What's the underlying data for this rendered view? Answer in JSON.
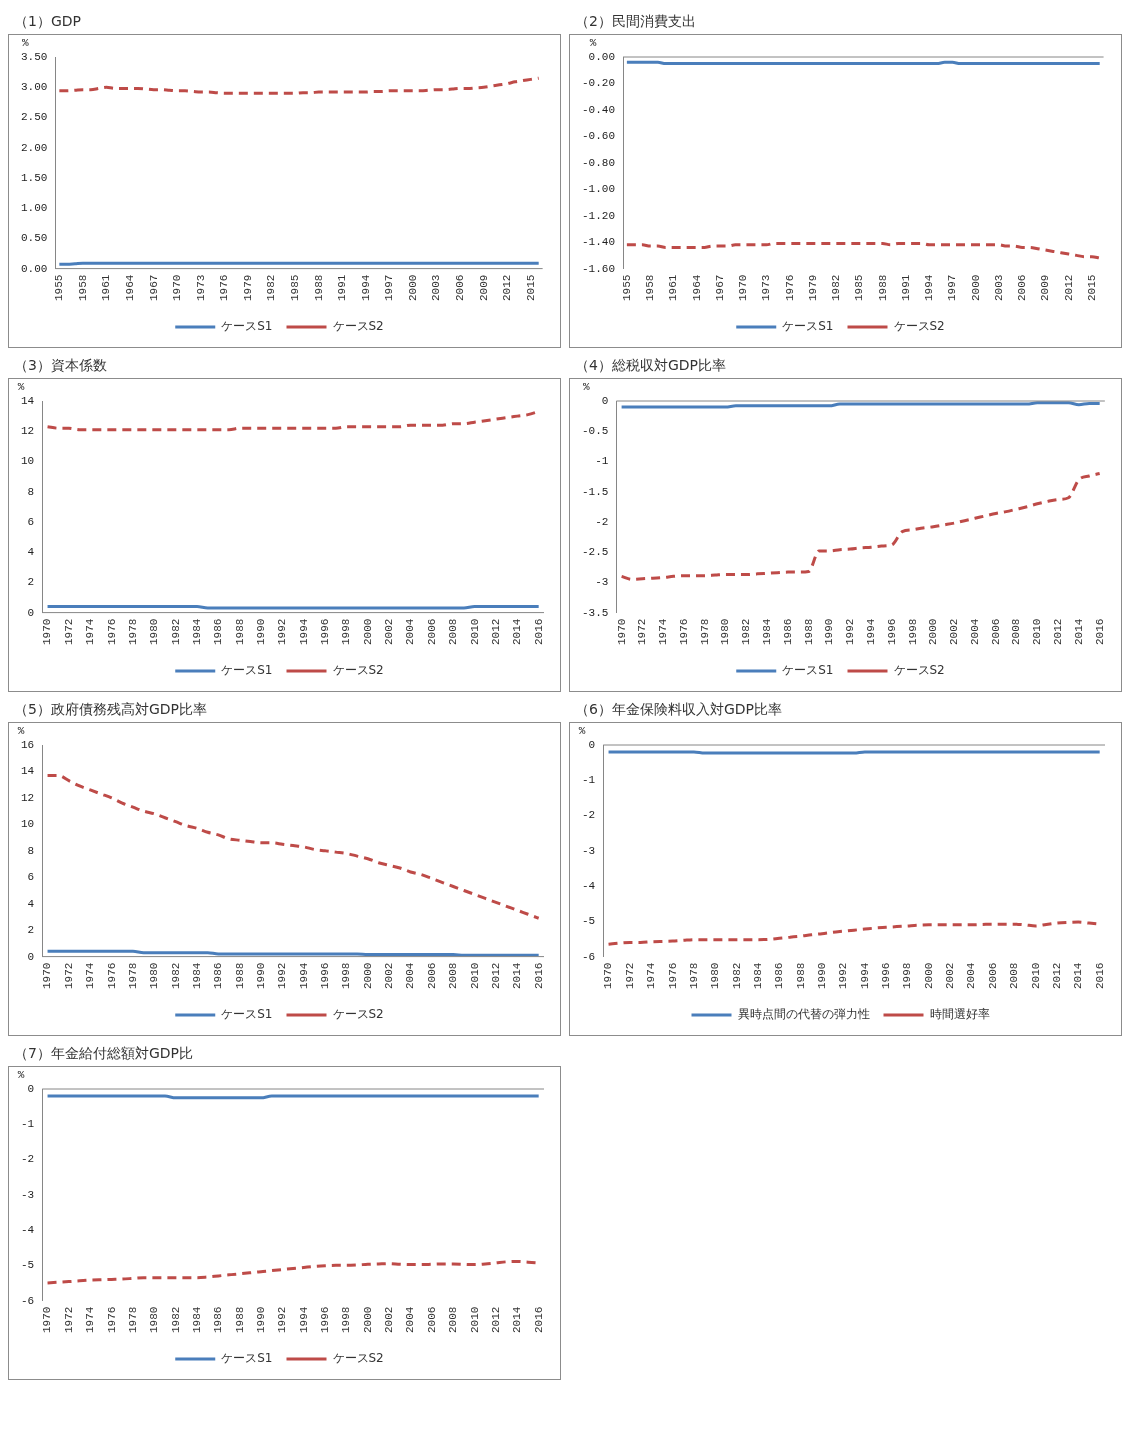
{
  "chart_data": [
    {
      "type": "line",
      "title": "（1）GDP",
      "ylabel": "%",
      "legend": "bottom",
      "categories": [
        "1955",
        null,
        null,
        "1958",
        null,
        null,
        "1961",
        null,
        null,
        "1964",
        null,
        null,
        "1967",
        null,
        null,
        "1970",
        null,
        null,
        "1973",
        null,
        null,
        "1976",
        null,
        null,
        "1979",
        null,
        null,
        "1982",
        null,
        null,
        "1985",
        null,
        null,
        "1988",
        null,
        null,
        "1991",
        null,
        null,
        "1994",
        null,
        null,
        "1997",
        null,
        null,
        "2000",
        null,
        null,
        "2003",
        null,
        null,
        "2006",
        null,
        null,
        "2009",
        null,
        null,
        "2012",
        null,
        null,
        "2015",
        null
      ],
      "series": [
        {
          "name": "ケースS1",
          "color": "#4a7ebb",
          "line_style": "solid",
          "values": [
            0.07,
            0.07,
            0.08,
            0.09,
            0.09,
            0.09,
            0.09,
            0.09,
            0.09,
            0.09,
            0.09,
            0.09,
            0.09,
            0.09,
            0.09,
            0.09,
            0.09,
            0.09,
            0.09,
            0.09,
            0.09,
            0.09,
            0.09,
            0.09,
            0.09,
            0.09,
            0.09,
            0.09,
            0.09,
            0.09,
            0.09,
            0.09,
            0.09,
            0.09,
            0.09,
            0.09,
            0.09,
            0.09,
            0.09,
            0.09,
            0.09,
            0.09,
            0.09,
            0.09,
            0.09,
            0.09,
            0.09,
            0.09,
            0.09,
            0.09,
            0.09,
            0.09,
            0.09,
            0.09,
            0.09,
            0.09,
            0.09,
            0.09,
            0.09,
            0.09,
            0.09,
            0.09
          ]
        },
        {
          "name": "ケースS2",
          "color": "#be4b48",
          "line_style": "dashed",
          "values": [
            2.94,
            2.94,
            2.95,
            2.96,
            2.96,
            2.98,
            3,
            2.98,
            2.98,
            2.98,
            2.98,
            2.97,
            2.96,
            2.96,
            2.95,
            2.94,
            2.94,
            2.93,
            2.92,
            2.92,
            2.91,
            2.9,
            2.9,
            2.9,
            2.9,
            2.9,
            2.9,
            2.9,
            2.9,
            2.9,
            2.9,
            2.91,
            2.91,
            2.92,
            2.92,
            2.92,
            2.92,
            2.92,
            2.92,
            2.92,
            2.93,
            2.93,
            2.94,
            2.94,
            2.94,
            2.94,
            2.94,
            2.95,
            2.96,
            2.96,
            2.97,
            2.98,
            2.98,
            2.99,
            3,
            3.02,
            3.04,
            3.06,
            3.09,
            3.11,
            3.13,
            3.15
          ]
        }
      ],
      "ylim": [
        0,
        3.5
      ],
      "yticks": [
        {
          "value": 0,
          "label": "0.00"
        },
        {
          "value": 0.5,
          "label": "0.50"
        },
        {
          "value": 1,
          "label": "1.00"
        },
        {
          "value": 1.5,
          "label": "1.50"
        },
        {
          "value": 2,
          "label": "2.00"
        },
        {
          "value": 2.5,
          "label": "2.50"
        },
        {
          "value": 3,
          "label": "3.00"
        },
        {
          "value": 3.5,
          "label": "3.50"
        }
      ]
    },
    {
      "type": "line",
      "title": "（2）民間消費支出",
      "ylabel": "%",
      "legend": "bottom",
      "categories": [
        "1955",
        null,
        null,
        "1958",
        null,
        null,
        "1961",
        null,
        null,
        "1964",
        null,
        null,
        "1967",
        null,
        null,
        "1970",
        null,
        null,
        "1973",
        null,
        null,
        "1976",
        null,
        null,
        "1979",
        null,
        null,
        "1982",
        null,
        null,
        "1985",
        null,
        null,
        "1988",
        null,
        null,
        "1991",
        null,
        null,
        "1994",
        null,
        null,
        "1997",
        null,
        null,
        "2000",
        null,
        null,
        "2003",
        null,
        null,
        "2006",
        null,
        null,
        "2009",
        null,
        null,
        "2012",
        null,
        null,
        "2015",
        null
      ],
      "series": [
        {
          "name": "ケースS1",
          "color": "#4a7ebb",
          "line_style": "solid",
          "values": [
            -0.04,
            -0.04,
            -0.04,
            -0.04,
            -0.04,
            -0.05,
            -0.05,
            -0.05,
            -0.05,
            -0.05,
            -0.05,
            -0.05,
            -0.05,
            -0.05,
            -0.05,
            -0.05,
            -0.05,
            -0.05,
            -0.05,
            -0.05,
            -0.05,
            -0.05,
            -0.05,
            -0.05,
            -0.05,
            -0.05,
            -0.05,
            -0.05,
            -0.05,
            -0.05,
            -0.05,
            -0.05,
            -0.05,
            -0.05,
            -0.05,
            -0.05,
            -0.05,
            -0.05,
            -0.05,
            -0.05,
            -0.05,
            -0.04,
            -0.04,
            -0.05,
            -0.05,
            -0.05,
            -0.05,
            -0.05,
            -0.05,
            -0.05,
            -0.05,
            -0.05,
            -0.05,
            -0.05,
            -0.05,
            -0.05,
            -0.05,
            -0.05,
            -0.05,
            -0.05,
            -0.05,
            -0.05
          ]
        },
        {
          "name": "ケースS2",
          "color": "#be4b48",
          "line_style": "dashed",
          "values": [
            -1.42,
            -1.42,
            -1.42,
            -1.43,
            -1.43,
            -1.44,
            -1.44,
            -1.44,
            -1.44,
            -1.44,
            -1.44,
            -1.43,
            -1.43,
            -1.43,
            -1.42,
            -1.42,
            -1.42,
            -1.42,
            -1.42,
            -1.41,
            -1.41,
            -1.41,
            -1.41,
            -1.41,
            -1.41,
            -1.41,
            -1.41,
            -1.41,
            -1.41,
            -1.41,
            -1.41,
            -1.41,
            -1.41,
            -1.41,
            -1.42,
            -1.41,
            -1.41,
            -1.41,
            -1.41,
            -1.42,
            -1.42,
            -1.42,
            -1.42,
            -1.42,
            -1.42,
            -1.42,
            -1.42,
            -1.42,
            -1.42,
            -1.43,
            -1.43,
            -1.44,
            -1.44,
            -1.45,
            -1.46,
            -1.47,
            -1.48,
            -1.49,
            -1.5,
            -1.51,
            -1.51,
            -1.52
          ]
        }
      ],
      "ylim": [
        -1.6,
        0
      ],
      "yticks": [
        {
          "value": 0,
          "label": "0.00"
        },
        {
          "value": -0.2,
          "label": "-0.20"
        },
        {
          "value": -0.4,
          "label": "-0.40"
        },
        {
          "value": -0.6,
          "label": "-0.60"
        },
        {
          "value": -0.8,
          "label": "-0.80"
        },
        {
          "value": -1,
          "label": "-1.00"
        },
        {
          "value": -1.2,
          "label": "-1.20"
        },
        {
          "value": -1.4,
          "label": "-1.40"
        },
        {
          "value": -1.6,
          "label": "-1.60"
        }
      ]
    },
    {
      "type": "line",
      "title": "（3）資本係数",
      "ylabel": "%",
      "legend": "bottom",
      "categories": [
        "1970",
        null,
        "1972",
        null,
        "1974",
        null,
        "1976",
        null,
        "1978",
        null,
        "1980",
        null,
        "1982",
        null,
        "1984",
        null,
        "1986",
        null,
        "1988",
        null,
        "1990",
        null,
        "1992",
        null,
        "1994",
        null,
        "1996",
        null,
        "1998",
        null,
        "2000",
        null,
        "2002",
        null,
        "2004",
        null,
        "2006",
        null,
        "2008",
        null,
        "2010",
        null,
        "2012",
        null,
        "2014",
        null,
        "2016"
      ],
      "series": [
        {
          "name": "ケースS1",
          "color": "#4a7ebb",
          "line_style": "solid",
          "values": [
            0.4,
            0.4,
            0.4,
            0.4,
            0.4,
            0.4,
            0.4,
            0.4,
            0.4,
            0.4,
            0.4,
            0.4,
            0.4,
            0.4,
            0.4,
            0.3,
            0.3,
            0.3,
            0.3,
            0.3,
            0.3,
            0.3,
            0.3,
            0.3,
            0.3,
            0.3,
            0.3,
            0.3,
            0.3,
            0.3,
            0.3,
            0.3,
            0.3,
            0.3,
            0.3,
            0.3,
            0.3,
            0.3,
            0.3,
            0.3,
            0.4,
            0.4,
            0.4,
            0.4,
            0.4,
            0.4,
            0.4
          ]
        },
        {
          "name": "ケースS2",
          "color": "#be4b48",
          "line_style": "dashed",
          "values": [
            12.3,
            12.2,
            12.2,
            12.1,
            12.1,
            12.1,
            12.1,
            12.1,
            12.1,
            12.1,
            12.1,
            12.1,
            12.1,
            12.1,
            12.1,
            12.1,
            12.1,
            12.1,
            12.2,
            12.2,
            12.2,
            12.2,
            12.2,
            12.2,
            12.2,
            12.2,
            12.2,
            12.2,
            12.3,
            12.3,
            12.3,
            12.3,
            12.3,
            12.3,
            12.4,
            12.4,
            12.4,
            12.4,
            12.5,
            12.5,
            12.6,
            12.7,
            12.8,
            12.9,
            13,
            13.1,
            13.3
          ]
        }
      ],
      "ylim": [
        0,
        14
      ],
      "yticks": [
        0,
        2,
        4,
        6,
        8,
        10,
        12,
        14
      ]
    },
    {
      "type": "line",
      "title": "（4）総税収対GDP比率",
      "ylabel": "%",
      "legend": "bottom",
      "categories": [
        "1970",
        null,
        "1972",
        null,
        "1974",
        null,
        "1976",
        null,
        "1978",
        null,
        "1980",
        null,
        "1982",
        null,
        "1984",
        null,
        "1986",
        null,
        "1988",
        null,
        "1990",
        null,
        "1992",
        null,
        "1994",
        null,
        "1996",
        null,
        "1998",
        null,
        "2000",
        null,
        "2002",
        null,
        "2004",
        null,
        "2006",
        null,
        "2008",
        null,
        "2010",
        null,
        "2012",
        null,
        "2014",
        null,
        "2016"
      ],
      "series": [
        {
          "name": "ケースS1",
          "color": "#4a7ebb",
          "line_style": "solid",
          "values": [
            -0.1,
            -0.1,
            -0.1,
            -0.1,
            -0.1,
            -0.1,
            -0.1,
            -0.1,
            -0.1,
            -0.1,
            -0.1,
            -0.08,
            -0.08,
            -0.08,
            -0.08,
            -0.08,
            -0.08,
            -0.08,
            -0.08,
            -0.08,
            -0.08,
            -0.05,
            -0.05,
            -0.05,
            -0.05,
            -0.05,
            -0.05,
            -0.05,
            -0.05,
            -0.05,
            -0.05,
            -0.05,
            -0.05,
            -0.05,
            -0.05,
            -0.05,
            -0.05,
            -0.05,
            -0.05,
            -0.05,
            -0.03,
            -0.03,
            -0.03,
            -0.03,
            -0.06,
            -0.04,
            -0.04
          ]
        },
        {
          "name": "ケースS2",
          "color": "#be4b48",
          "line_style": "dashed",
          "values": [
            -2.9,
            -2.95,
            -2.94,
            -2.93,
            -2.92,
            -2.9,
            -2.89,
            -2.89,
            -2.89,
            -2.88,
            -2.87,
            -2.87,
            -2.87,
            -2.86,
            -2.85,
            -2.84,
            -2.83,
            -2.83,
            -2.82,
            -2.48,
            -2.48,
            -2.46,
            -2.45,
            -2.43,
            -2.42,
            -2.4,
            -2.38,
            -2.16,
            -2.13,
            -2.1,
            -2.08,
            -2.05,
            -2.02,
            -1.98,
            -1.94,
            -1.9,
            -1.86,
            -1.83,
            -1.79,
            -1.75,
            -1.7,
            -1.66,
            -1.63,
            -1.6,
            -1.3,
            -1.24,
            -1.2
          ]
        }
      ],
      "ylim": [
        -3.5,
        0
      ],
      "yticks": [
        0,
        -0.5,
        -1,
        -1.5,
        -2,
        -2.5,
        -3,
        -3.5
      ]
    },
    {
      "type": "line",
      "title": "（5）政府債務残高対GDP比率",
      "ylabel": "%",
      "legend": "bottom",
      "categories": [
        "1970",
        null,
        "1972",
        null,
        "1974",
        null,
        "1976",
        null,
        "1978",
        null,
        "1980",
        null,
        "1982",
        null,
        "1984",
        null,
        "1986",
        null,
        "1988",
        null,
        "1990",
        null,
        "1992",
        null,
        "1994",
        null,
        "1996",
        null,
        "1998",
        null,
        "2000",
        null,
        "2002",
        null,
        "2004",
        null,
        "2006",
        null,
        "2008",
        null,
        "2010",
        null,
        "2012",
        null,
        "2014",
        null,
        "2016"
      ],
      "series": [
        {
          "name": "ケースS1",
          "color": "#4a7ebb",
          "line_style": "solid",
          "values": [
            0.4,
            0.4,
            0.4,
            0.4,
            0.4,
            0.4,
            0.4,
            0.4,
            0.4,
            0.3,
            0.3,
            0.3,
            0.3,
            0.3,
            0.3,
            0.3,
            0.2,
            0.2,
            0.2,
            0.2,
            0.2,
            0.2,
            0.2,
            0.2,
            0.2,
            0.2,
            0.2,
            0.2,
            0.2,
            0.2,
            0.15,
            0.15,
            0.15,
            0.15,
            0.15,
            0.15,
            0.15,
            0.15,
            0.15,
            0.1,
            0.1,
            0.1,
            0.1,
            0.1,
            0.1,
            0.1,
            0.1
          ]
        },
        {
          "name": "ケースS2",
          "color": "#be4b48",
          "line_style": "dashed",
          "values": [
            13.7,
            13.7,
            13.3,
            12.9,
            12.6,
            12.3,
            12,
            11.6,
            11.3,
            11,
            10.8,
            10.5,
            10.2,
            9.9,
            9.7,
            9.4,
            9.2,
            8.9,
            8.8,
            8.7,
            8.6,
            8.6,
            8.5,
            8.4,
            8.3,
            8.1,
            8,
            7.9,
            7.8,
            7.6,
            7.4,
            7.1,
            6.9,
            6.7,
            6.4,
            6.2,
            5.9,
            5.6,
            5.3,
            5,
            4.7,
            4.4,
            4.1,
            3.8,
            3.5,
            3.2,
            2.9
          ]
        }
      ],
      "ylim": [
        0,
        16
      ],
      "yticks": [
        0,
        2,
        4,
        6,
        8,
        10,
        12,
        14,
        16
      ]
    },
    {
      "type": "line",
      "title": "（6）年金保険料収入対GDP比率",
      "ylabel": "%",
      "legend": "bottom",
      "categories": [
        "1970",
        null,
        "1972",
        null,
        "1974",
        null,
        "1976",
        null,
        "1978",
        null,
        "1980",
        null,
        "1982",
        null,
        "1984",
        null,
        "1986",
        null,
        "1988",
        null,
        "1990",
        null,
        "1992",
        null,
        "1994",
        null,
        "1996",
        null,
        "1998",
        null,
        "2000",
        null,
        "2002",
        null,
        "2004",
        null,
        "2006",
        null,
        "2008",
        null,
        "2010",
        null,
        "2012",
        null,
        "2014",
        null,
        "2016"
      ],
      "series": [
        {
          "name": "異時点間の代替の弾力性",
          "color": "#4a7ebb",
          "line_style": "solid",
          "values": [
            -0.2,
            -0.2,
            -0.2,
            -0.2,
            -0.2,
            -0.2,
            -0.2,
            -0.2,
            -0.2,
            -0.23,
            -0.23,
            -0.23,
            -0.23,
            -0.23,
            -0.23,
            -0.23,
            -0.23,
            -0.23,
            -0.23,
            -0.23,
            -0.23,
            -0.23,
            -0.23,
            -0.23,
            -0.2,
            -0.2,
            -0.2,
            -0.2,
            -0.2,
            -0.2,
            -0.2,
            -0.2,
            -0.2,
            -0.2,
            -0.2,
            -0.2,
            -0.2,
            -0.2,
            -0.2,
            -0.2,
            -0.2,
            -0.2,
            -0.2,
            -0.2,
            -0.2,
            -0.2,
            -0.2
          ]
        },
        {
          "name": "時間選好率",
          "color": "#be4b48",
          "line_style": "dashed",
          "values": [
            -5.65,
            -5.62,
            -5.6,
            -5.6,
            -5.58,
            -5.57,
            -5.56,
            -5.54,
            -5.52,
            -5.52,
            -5.52,
            -5.52,
            -5.52,
            -5.52,
            -5.52,
            -5.51,
            -5.48,
            -5.45,
            -5.42,
            -5.38,
            -5.35,
            -5.31,
            -5.28,
            -5.25,
            -5.22,
            -5.19,
            -5.17,
            -5.15,
            -5.13,
            -5.11,
            -5.1,
            -5.1,
            -5.1,
            -5.1,
            -5.1,
            -5.09,
            -5.08,
            -5.08,
            -5.08,
            -5.1,
            -5.13,
            -5.09,
            -5.05,
            -5.03,
            -5.02,
            -5.05,
            -5.08
          ]
        }
      ],
      "ylim": [
        -6,
        0
      ],
      "yticks": [
        0,
        -1,
        -2,
        -3,
        -4,
        -5,
        -6
      ]
    },
    {
      "type": "line",
      "title": "（7）年金給付総額対GDP比",
      "ylabel": "%",
      "legend": "bottom",
      "categories": [
        "1970",
        null,
        "1972",
        null,
        "1974",
        null,
        "1976",
        null,
        "1978",
        null,
        "1980",
        null,
        "1982",
        null,
        "1984",
        null,
        "1986",
        null,
        "1988",
        null,
        "1990",
        null,
        "1992",
        null,
        "1994",
        null,
        "1996",
        null,
        "1998",
        null,
        "2000",
        null,
        "2002",
        null,
        "2004",
        null,
        "2006",
        null,
        "2008",
        null,
        "2010",
        null,
        "2012",
        null,
        "2014",
        null,
        "2016"
      ],
      "series": [
        {
          "name": "ケースS1",
          "color": "#4a7ebb",
          "line_style": "solid",
          "values": [
            -0.2,
            -0.2,
            -0.2,
            -0.2,
            -0.2,
            -0.2,
            -0.2,
            -0.2,
            -0.2,
            -0.2,
            -0.2,
            -0.2,
            -0.25,
            -0.25,
            -0.25,
            -0.25,
            -0.25,
            -0.25,
            -0.25,
            -0.25,
            -0.25,
            -0.2,
            -0.2,
            -0.2,
            -0.2,
            -0.2,
            -0.2,
            -0.2,
            -0.2,
            -0.2,
            -0.2,
            -0.2,
            -0.2,
            -0.2,
            -0.2,
            -0.2,
            -0.2,
            -0.2,
            -0.2,
            -0.2,
            -0.2,
            -0.2,
            -0.2,
            -0.2,
            -0.2,
            -0.2,
            -0.2
          ]
        },
        {
          "name": "ケースS2",
          "color": "#be4b48",
          "line_style": "dashed",
          "values": [
            -5.5,
            -5.48,
            -5.46,
            -5.44,
            -5.42,
            -5.41,
            -5.4,
            -5.39,
            -5.37,
            -5.35,
            -5.35,
            -5.35,
            -5.35,
            -5.35,
            -5.35,
            -5.33,
            -5.3,
            -5.27,
            -5.24,
            -5.21,
            -5.18,
            -5.15,
            -5.12,
            -5.09,
            -5.06,
            -5.03,
            -5.01,
            -5,
            -5,
            -4.99,
            -4.97,
            -4.96,
            -4.95,
            -4.97,
            -4.98,
            -4.98,
            -4.97,
            -4.96,
            -4.96,
            -4.97,
            -4.98,
            -4.96,
            -4.93,
            -4.9,
            -4.89,
            -4.91,
            -4.93
          ]
        }
      ],
      "ylim": [
        -6,
        0
      ],
      "yticks": [
        0,
        -1,
        -2,
        -3,
        -4,
        -5,
        -6
      ]
    }
  ]
}
